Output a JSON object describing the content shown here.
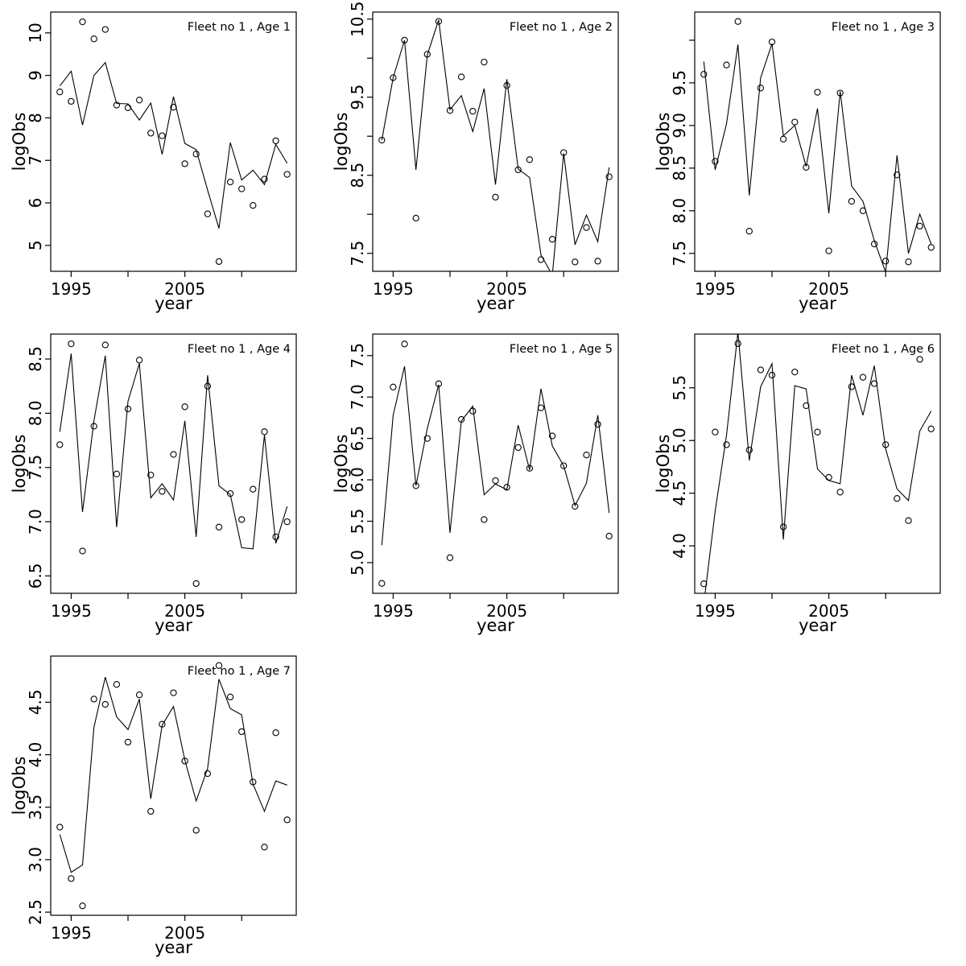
{
  "figure": {
    "background": "#ffffff",
    "panel_size": 400,
    "panels_per_row": 3,
    "ink_color": "#000000"
  },
  "chart_data": [
    {
      "type": "line",
      "title": "Fleet no 1 , Age 1",
      "xlabel": "year",
      "ylabel": "logObs",
      "grid": false,
      "legend": "none",
      "x": [
        1994,
        1995,
        1996,
        1997,
        1998,
        1999,
        2000,
        2001,
        2002,
        2003,
        2004,
        2005,
        2006,
        2007,
        2008,
        2009,
        2010,
        2011,
        2012,
        2013,
        2014
      ],
      "series": [
        {
          "name": "observed",
          "marker": "circle",
          "values": [
            8.61,
            8.39,
            10.26,
            9.86,
            10.08,
            8.3,
            8.24,
            8.42,
            7.64,
            7.58,
            8.25,
            6.92,
            7.15,
            5.74,
            4.62,
            6.49,
            6.33,
            5.94,
            6.56,
            7.46,
            6.67
          ]
        },
        {
          "name": "fitted",
          "marker": "line",
          "values": [
            8.75,
            9.1,
            7.83,
            9.0,
            9.3,
            8.34,
            8.33,
            7.95,
            8.35,
            7.14,
            8.5,
            7.4,
            7.25,
            6.3,
            5.4,
            7.42,
            6.54,
            6.77,
            6.43,
            7.38,
            6.93
          ]
        }
      ],
      "xlim": [
        1993.2,
        2014.8
      ],
      "ylim": [
        4.39,
        10.49
      ],
      "xticks": [
        {
          "v": 1995,
          "label": "1995"
        },
        {
          "v": 2000,
          "label": ""
        },
        {
          "v": 2005,
          "label": "2005"
        },
        {
          "v": 2010,
          "label": ""
        }
      ],
      "yticks": [
        {
          "v": 10,
          "label": "10"
        },
        {
          "v": 9,
          "label": "9"
        },
        {
          "v": 8,
          "label": "8"
        },
        {
          "v": 7,
          "label": "7"
        },
        {
          "v": 6,
          "label": "6"
        },
        {
          "v": 5,
          "label": "5"
        }
      ]
    },
    {
      "type": "line",
      "title": "Fleet no 1 , Age 2",
      "xlabel": "year",
      "ylabel": "logObs",
      "grid": false,
      "legend": "none",
      "x": [
        1994,
        1995,
        1996,
        1997,
        1998,
        1999,
        2000,
        2001,
        2002,
        2003,
        2004,
        2005,
        2006,
        2007,
        2008,
        2009,
        2010,
        2011,
        2012,
        2013,
        2014
      ],
      "series": [
        {
          "name": "observed",
          "marker": "circle",
          "values": [
            8.95,
            9.75,
            10.23,
            7.95,
            10.05,
            10.47,
            9.33,
            9.76,
            9.32,
            9.95,
            8.22,
            9.65,
            8.57,
            8.7,
            7.42,
            7.68,
            8.79,
            7.39,
            7.83,
            7.4,
            8.48
          ]
        },
        {
          "name": "fitted",
          "marker": "line",
          "values": [
            8.95,
            9.75,
            10.23,
            8.57,
            10.04,
            10.49,
            9.34,
            9.52,
            9.06,
            9.61,
            8.38,
            9.73,
            8.58,
            8.47,
            7.48,
            7.22,
            8.78,
            7.61,
            7.99,
            7.65,
            8.6
          ]
        }
      ],
      "xlim": [
        1993.2,
        2014.8
      ],
      "ylim": [
        7.27,
        10.59
      ],
      "xticks": [
        {
          "v": 1995,
          "label": "1995"
        },
        {
          "v": 2000,
          "label": ""
        },
        {
          "v": 2005,
          "label": "2005"
        },
        {
          "v": 2010,
          "label": ""
        }
      ],
      "yticks": [
        {
          "v": 10.5,
          "label": "10.5"
        },
        {
          "v": 10,
          "label": ""
        },
        {
          "v": 9.5,
          "label": "9.5"
        },
        {
          "v": 9,
          "label": ""
        },
        {
          "v": 8.5,
          "label": "8.5"
        },
        {
          "v": 8,
          "label": ""
        },
        {
          "v": 7.5,
          "label": "7.5"
        }
      ]
    },
    {
      "type": "line",
      "title": "Fleet no 1 , Age 3",
      "xlabel": "year",
      "ylabel": "logObs",
      "grid": false,
      "legend": "none",
      "x": [
        1994,
        1995,
        1996,
        1997,
        1998,
        1999,
        2000,
        2001,
        2002,
        2003,
        2004,
        2005,
        2006,
        2007,
        2008,
        2009,
        2010,
        2011,
        2012,
        2013,
        2014
      ],
      "series": [
        {
          "name": "observed",
          "marker": "circle",
          "values": [
            9.6,
            8.58,
            9.71,
            10.22,
            7.76,
            9.44,
            9.98,
            8.84,
            9.04,
            8.51,
            9.39,
            7.53,
            9.38,
            8.11,
            8.0,
            7.61,
            7.41,
            8.42,
            7.4,
            7.82,
            7.57
          ]
        },
        {
          "name": "fitted",
          "marker": "line",
          "values": [
            9.75,
            8.48,
            9.02,
            9.95,
            8.18,
            9.56,
            9.96,
            8.88,
            9.0,
            8.52,
            9.2,
            7.97,
            9.4,
            8.29,
            8.11,
            7.65,
            7.28,
            8.65,
            7.5,
            7.96,
            7.61
          ]
        }
      ],
      "xlim": [
        1993.2,
        2014.8
      ],
      "ylim": [
        7.29,
        10.33
      ],
      "xticks": [
        {
          "v": 1995,
          "label": "1995"
        },
        {
          "v": 2000,
          "label": ""
        },
        {
          "v": 2005,
          "label": "2005"
        },
        {
          "v": 2010,
          "label": ""
        }
      ],
      "yticks": [
        {
          "v": 10,
          "label": ""
        },
        {
          "v": 9.5,
          "label": "9.5"
        },
        {
          "v": 9,
          "label": "9.0"
        },
        {
          "v": 8.5,
          "label": "8.5"
        },
        {
          "v": 8,
          "label": "8.0"
        },
        {
          "v": 7.5,
          "label": "7.5"
        }
      ]
    },
    {
      "type": "line",
      "title": "Fleet no 1 , Age 4",
      "xlabel": "year",
      "ylabel": "logObs",
      "grid": false,
      "legend": "none",
      "x": [
        1994,
        1995,
        1996,
        1997,
        1998,
        1999,
        2000,
        2001,
        2002,
        2003,
        2004,
        2005,
        2006,
        2007,
        2008,
        2009,
        2010,
        2011,
        2012,
        2013,
        2014
      ],
      "series": [
        {
          "name": "observed",
          "marker": "circle",
          "values": [
            7.71,
            8.64,
            6.73,
            7.88,
            8.63,
            7.44,
            8.04,
            8.49,
            7.43,
            7.28,
            7.62,
            8.06,
            6.43,
            8.25,
            6.95,
            7.26,
            7.02,
            7.3,
            7.83,
            6.86,
            7.0
          ]
        },
        {
          "name": "fitted",
          "marker": "line",
          "values": [
            7.83,
            8.55,
            7.09,
            7.93,
            8.53,
            6.95,
            8.11,
            8.46,
            7.22,
            7.35,
            7.2,
            7.93,
            6.86,
            8.35,
            7.33,
            7.25,
            6.76,
            6.75,
            7.8,
            6.8,
            7.14
          ]
        }
      ],
      "xlim": [
        1993.2,
        2014.8
      ],
      "ylim": [
        6.34,
        8.73
      ],
      "xticks": [
        {
          "v": 1995,
          "label": "1995"
        },
        {
          "v": 2000,
          "label": ""
        },
        {
          "v": 2005,
          "label": "2005"
        },
        {
          "v": 2010,
          "label": ""
        }
      ],
      "yticks": [
        {
          "v": 8.5,
          "label": "8.5"
        },
        {
          "v": 8,
          "label": "8.0"
        },
        {
          "v": 7.5,
          "label": "7.5"
        },
        {
          "v": 7,
          "label": "7.0"
        },
        {
          "v": 6.5,
          "label": "6.5"
        }
      ]
    },
    {
      "type": "line",
      "title": "Fleet no 1 , Age 5",
      "xlabel": "year",
      "ylabel": "logObs",
      "grid": false,
      "legend": "none",
      "x": [
        1994,
        1995,
        1996,
        1997,
        1998,
        1999,
        2000,
        2001,
        2002,
        2003,
        2004,
        2005,
        2006,
        2007,
        2008,
        2009,
        2010,
        2011,
        2012,
        2013,
        2014
      ],
      "series": [
        {
          "name": "observed",
          "marker": "circle",
          "values": [
            4.75,
            7.12,
            7.64,
            5.93,
            6.5,
            7.16,
            5.06,
            6.73,
            6.83,
            5.52,
            5.99,
            5.91,
            6.39,
            6.14,
            6.87,
            6.53,
            6.17,
            5.68,
            6.3,
            6.67,
            5.32
          ]
        },
        {
          "name": "fitted",
          "marker": "line",
          "values": [
            5.21,
            6.78,
            7.37,
            5.93,
            6.62,
            7.15,
            5.36,
            6.71,
            6.89,
            5.82,
            5.95,
            5.88,
            6.66,
            6.12,
            7.1,
            6.41,
            6.17,
            5.69,
            5.96,
            6.78,
            5.6
          ]
        }
      ],
      "xlim": [
        1993.2,
        2014.8
      ],
      "ylim": [
        4.63,
        7.76
      ],
      "xticks": [
        {
          "v": 1995,
          "label": "1995"
        },
        {
          "v": 2000,
          "label": ""
        },
        {
          "v": 2005,
          "label": "2005"
        },
        {
          "v": 2010,
          "label": ""
        }
      ],
      "yticks": [
        {
          "v": 7.5,
          "label": "7.5"
        },
        {
          "v": 7,
          "label": "7.0"
        },
        {
          "v": 6.5,
          "label": "6.5"
        },
        {
          "v": 6,
          "label": "6.0"
        },
        {
          "v": 5.5,
          "label": "5.5"
        },
        {
          "v": 5,
          "label": "5.0"
        }
      ]
    },
    {
      "type": "line",
      "title": "Fleet no 1 , Age 6",
      "xlabel": "year",
      "ylabel": "logObs",
      "grid": false,
      "legend": "none",
      "x": [
        1994,
        1995,
        1996,
        1997,
        1998,
        1999,
        2000,
        2001,
        2002,
        2003,
        2004,
        2005,
        2006,
        2007,
        2008,
        2009,
        2010,
        2011,
        2012,
        2013,
        2014
      ],
      "series": [
        {
          "name": "observed",
          "marker": "circle",
          "values": [
            3.64,
            5.08,
            4.96,
            5.92,
            4.91,
            5.67,
            5.62,
            4.18,
            5.65,
            5.33,
            5.08,
            4.65,
            4.51,
            5.51,
            5.6,
            5.54,
            4.96,
            4.45,
            4.24,
            5.77,
            5.11
          ]
        },
        {
          "name": "fitted",
          "marker": "line",
          "values": [
            3.45,
            4.33,
            5.05,
            6.03,
            4.81,
            5.51,
            5.73,
            4.06,
            5.52,
            5.49,
            4.73,
            4.62,
            4.59,
            5.62,
            5.24,
            5.71,
            4.92,
            4.54,
            4.43,
            5.09,
            5.28
          ]
        }
      ],
      "xlim": [
        1993.2,
        2014.8
      ],
      "ylim": [
        3.55,
        6.01
      ],
      "xticks": [
        {
          "v": 1995,
          "label": "1995"
        },
        {
          "v": 2000,
          "label": ""
        },
        {
          "v": 2005,
          "label": "2005"
        },
        {
          "v": 2010,
          "label": ""
        }
      ],
      "yticks": [
        {
          "v": 5.5,
          "label": "5.5"
        },
        {
          "v": 5,
          "label": "5.0"
        },
        {
          "v": 4.5,
          "label": "4.5"
        },
        {
          "v": 4,
          "label": "4.0"
        }
      ]
    },
    {
      "type": "line",
      "title": "Fleet no 1 , Age 7",
      "xlabel": "year",
      "ylabel": "logObs",
      "grid": false,
      "legend": "none",
      "x": [
        1994,
        1995,
        1996,
        1997,
        1998,
        1999,
        2000,
        2001,
        2002,
        2003,
        2004,
        2005,
        2006,
        2007,
        2008,
        2009,
        2010,
        2011,
        2012,
        2013,
        2014
      ],
      "series": [
        {
          "name": "observed",
          "marker": "circle",
          "values": [
            3.31,
            2.82,
            2.56,
            4.53,
            4.48,
            4.67,
            4.12,
            4.57,
            3.46,
            4.29,
            4.59,
            3.94,
            3.28,
            3.82,
            4.85,
            4.55,
            4.22,
            3.74,
            3.12,
            4.21,
            3.38
          ]
        },
        {
          "name": "fitted",
          "marker": "line",
          "values": [
            3.24,
            2.88,
            2.95,
            4.26,
            4.74,
            4.36,
            4.24,
            4.53,
            3.58,
            4.28,
            4.46,
            3.95,
            3.56,
            3.87,
            4.72,
            4.44,
            4.38,
            3.72,
            3.46,
            3.75,
            3.71
          ]
        }
      ],
      "xlim": [
        1993.2,
        2014.8
      ],
      "ylim": [
        2.47,
        4.94
      ],
      "xticks": [
        {
          "v": 1995,
          "label": "1995"
        },
        {
          "v": 2000,
          "label": ""
        },
        {
          "v": 2005,
          "label": "2005"
        },
        {
          "v": 2010,
          "label": ""
        }
      ],
      "yticks": [
        {
          "v": 4.5,
          "label": "4.5"
        },
        {
          "v": 4,
          "label": "4.0"
        },
        {
          "v": 3.5,
          "label": "3.5"
        },
        {
          "v": 3,
          "label": "3.0"
        },
        {
          "v": 2.5,
          "label": "2.5"
        }
      ]
    }
  ]
}
